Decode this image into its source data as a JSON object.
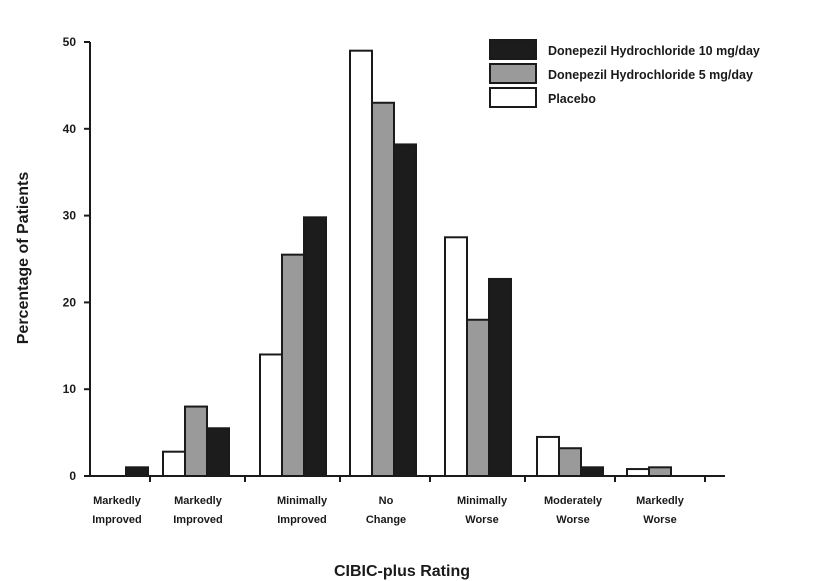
{
  "chart_data": {
    "type": "bar",
    "title": "",
    "xlabel": "CIBIC-plus Rating",
    "ylabel": "Percentage of Patients",
    "ylim": [
      0,
      50
    ],
    "yticks": [
      0,
      10,
      20,
      30,
      40,
      50
    ],
    "grid": false,
    "legend_position": "top-right",
    "categories": [
      [
        "Markedly",
        "Improved"
      ],
      [
        "Markedly",
        "Improved"
      ],
      [
        "Minimally",
        "Improved"
      ],
      [
        "No",
        "Change"
      ],
      [
        "Minimally",
        "Worse"
      ],
      [
        "Moderately",
        "Worse"
      ],
      [
        "Markedly",
        "Worse"
      ]
    ],
    "series": [
      {
        "name": "Placebo",
        "color": "#ffffff",
        "values": [
          0,
          2.8,
          14,
          49,
          27.5,
          4.5,
          0.8
        ]
      },
      {
        "name": "Donepezil Hydrochloride 5 mg/day",
        "color": "#9a9a9a",
        "values": [
          0,
          8,
          25.5,
          43,
          18,
          3.2,
          1
        ]
      },
      {
        "name": "Donepezil Hydrochloride 10 mg/day",
        "color": "#1c1c1c",
        "values": [
          1,
          5.5,
          29.8,
          38.2,
          22.7,
          1,
          0
        ]
      }
    ],
    "legend_order": [
      2,
      1,
      0
    ]
  }
}
